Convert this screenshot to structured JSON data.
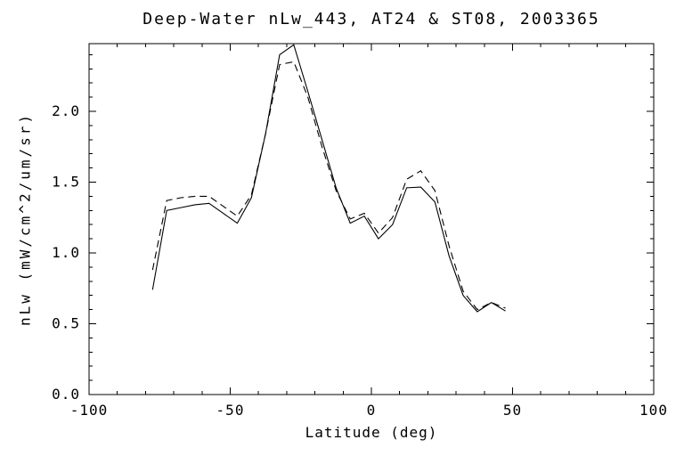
{
  "chart_data": {
    "type": "line",
    "title": "Deep-Water nLw_443, AT24 & ST08, 2003365",
    "xlabel": "Latitude (deg)",
    "ylabel": "nLw (mW/cm^2/um/sr)",
    "xlim": [
      -100,
      100
    ],
    "ylim": [
      0,
      2.478
    ],
    "xticks": [
      -100,
      -50,
      0,
      50,
      100
    ],
    "xtick_labels": [
      "-100",
      "-50",
      "0",
      "50",
      "100"
    ],
    "x_minor_step": 10,
    "yticks": [
      0.0,
      0.5,
      1.0,
      1.5,
      2.0
    ],
    "ytick_labels": [
      "0.0",
      "0.5",
      "1.0",
      "1.5",
      "2.0"
    ],
    "y_minor_step": 0.1,
    "grid": false,
    "legend": "none",
    "background_color": "#ffffff",
    "line_color": "#000000",
    "x": [
      -77.5,
      -72.5,
      -67.5,
      -62.5,
      -57.5,
      -52.5,
      -47.5,
      -42.5,
      -37.5,
      -32.5,
      -27.5,
      -22.5,
      -17.5,
      -12.5,
      -7.5,
      -2.5,
      2.5,
      7.5,
      12.5,
      17.5,
      22.5,
      27.5,
      32.5,
      37.5,
      42.5,
      47.5
    ],
    "series": [
      {
        "name": "solid",
        "style": "solid",
        "values": [
          0.74,
          1.3,
          1.32,
          1.34,
          1.35,
          1.28,
          1.21,
          1.39,
          1.84,
          2.4,
          2.47,
          2.14,
          1.8,
          1.46,
          1.21,
          1.26,
          1.1,
          1.2,
          1.46,
          1.465,
          1.36,
          0.98,
          0.7,
          0.585,
          0.65,
          0.59
        ]
      },
      {
        "name": "dashed",
        "style": "dashed",
        "values": [
          0.88,
          1.37,
          1.39,
          1.4,
          1.4,
          1.33,
          1.26,
          1.41,
          1.84,
          2.33,
          2.35,
          2.1,
          1.75,
          1.44,
          1.24,
          1.28,
          1.14,
          1.25,
          1.52,
          1.58,
          1.44,
          1.05,
          0.73,
          0.6,
          0.65,
          0.61
        ]
      }
    ]
  }
}
